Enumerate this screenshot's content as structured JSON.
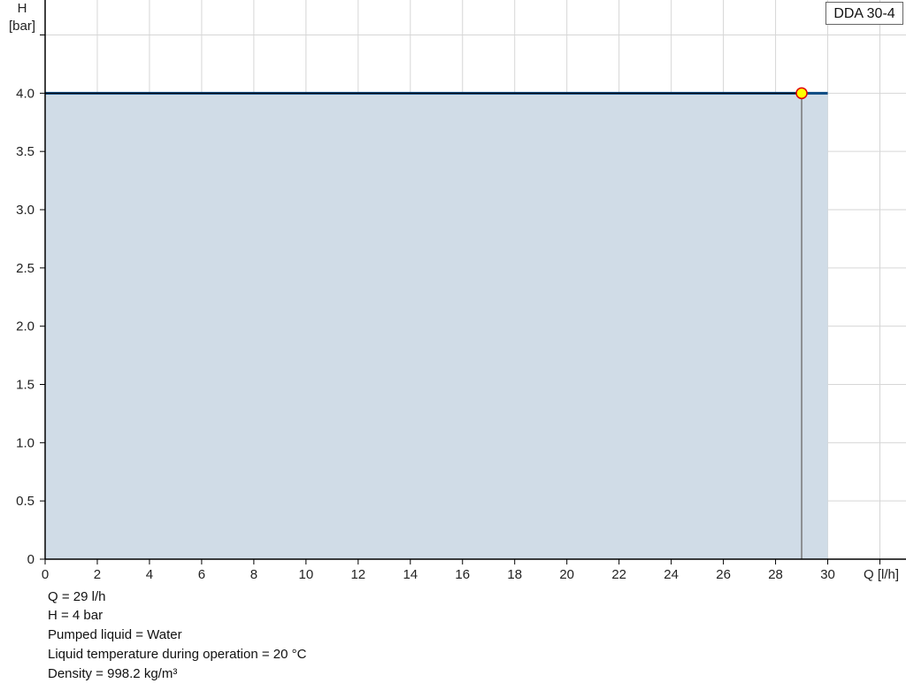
{
  "chart_data": {
    "type": "area",
    "title": "",
    "xlabel": "Q [l/h]",
    "ylabel_line1": "H",
    "ylabel_line2": "[bar]",
    "xlim": [
      0,
      33
    ],
    "ylim": [
      0,
      4.8
    ],
    "x_ticks": [
      0,
      2,
      4,
      6,
      8,
      10,
      12,
      14,
      16,
      18,
      20,
      22,
      24,
      26,
      28,
      30,
      32
    ],
    "x_tick_labels": [
      "0",
      "2",
      "4",
      "6",
      "8",
      "10",
      "12",
      "14",
      "16",
      "18",
      "20",
      "22",
      "24",
      "26",
      "28",
      "30",
      ""
    ],
    "y_ticks": [
      0,
      0.5,
      1,
      1.5,
      2,
      2.5,
      3,
      3.5,
      4,
      4.5
    ],
    "y_tick_labels": [
      "0",
      "0.5",
      "1.0",
      "1.5",
      "2.0",
      "2.5",
      "3.0",
      "3.5",
      "4.0",
      ""
    ],
    "grid": true,
    "legend": "top-right",
    "series": [
      {
        "name": "DDA 30-4",
        "x": [
          0,
          30
        ],
        "y": [
          4,
          4
        ],
        "color": "#0b4a82",
        "fill": "#d0dce7"
      }
    ],
    "operating_point": {
      "x": 29,
      "y": 4,
      "fill": "#ffff00",
      "stroke": "#e00000"
    }
  },
  "info": [
    "Q = 29 l/h",
    "H = 4 bar",
    "Pumped liquid = Water",
    "Liquid temperature during operation = 20 °C",
    "Density = 998.2 kg/m³"
  ]
}
